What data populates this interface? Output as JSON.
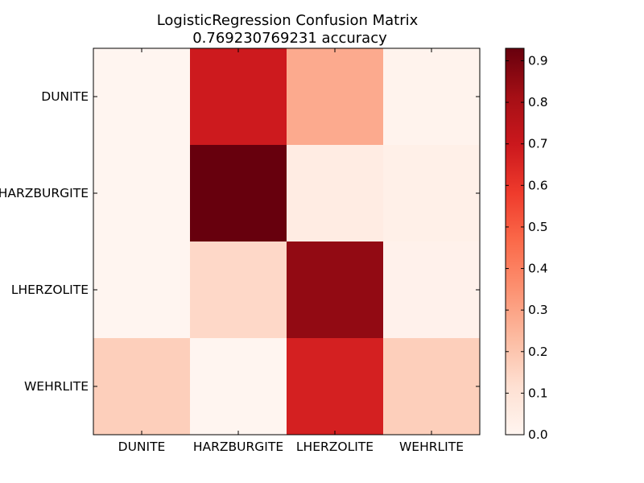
{
  "chart_data": {
    "type": "heatmap",
    "title": "LogisticRegression Confusion Matrix",
    "subtitle": "0.769230769231 accuracy",
    "xlabel": "",
    "ylabel": "",
    "x_categories": [
      "DUNITE",
      "HARZBURGITE",
      "LHERZOLITE",
      "WEHRLITE"
    ],
    "y_categories": [
      "DUNITE",
      "HARZBURGITE",
      "LHERZOLITE",
      "WEHRLITE"
    ],
    "matrix": [
      [
        0.0,
        0.69,
        0.28,
        0.01
      ],
      [
        0.0,
        0.93,
        0.05,
        0.03
      ],
      [
        0.0,
        0.14,
        0.85,
        0.02
      ],
      [
        0.17,
        0.0,
        0.67,
        0.17
      ]
    ],
    "colormap": "Reds",
    "colorbar": {
      "range": [
        0.0,
        0.93
      ],
      "ticks": [
        "0.0",
        "0.1",
        "0.2",
        "0.3",
        "0.4",
        "0.5",
        "0.6",
        "0.7",
        "0.8",
        "0.9"
      ]
    },
    "grid": false
  }
}
